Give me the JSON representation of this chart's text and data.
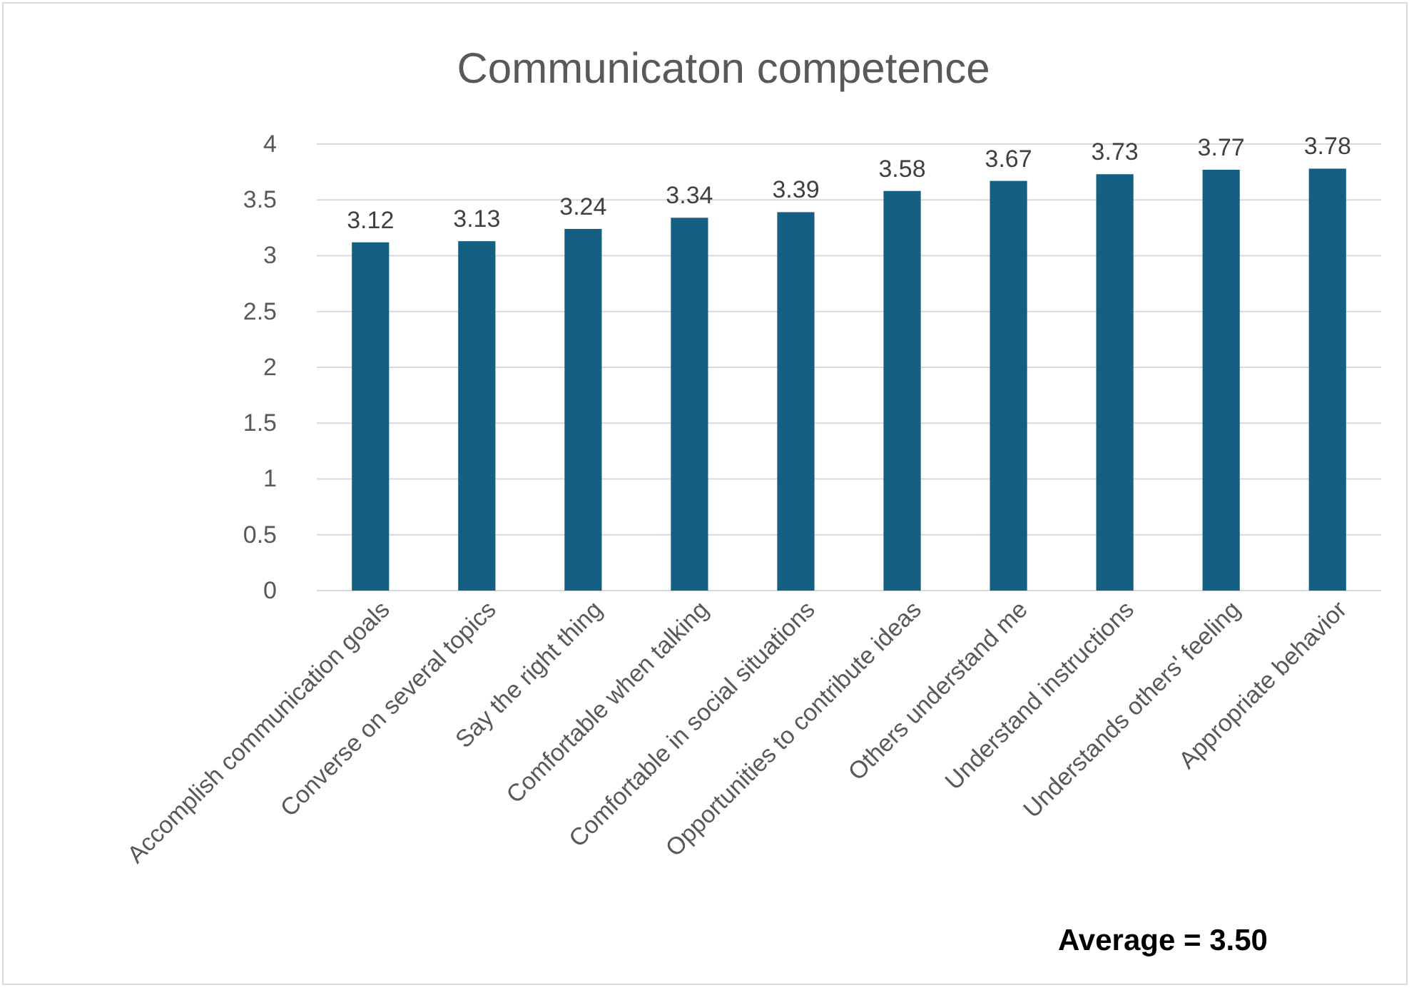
{
  "chart_data": {
    "type": "bar",
    "title": "Communicaton competence",
    "categories": [
      "Accomplish communication goals",
      "Converse on several topics",
      "Say the right thing",
      "Comfortable when talking",
      "Comfortable in social situations",
      "Opportunities to contribute ideas",
      "Others understand me",
      "Understand instructions",
      "Understands others' feeling",
      "Appropriate behavior"
    ],
    "values": [
      3.12,
      3.13,
      3.24,
      3.34,
      3.39,
      3.58,
      3.67,
      3.73,
      3.77,
      3.78
    ],
    "color": "#156082",
    "ylim": [
      0,
      4
    ],
    "yticks": [
      0,
      0.5,
      1,
      1.5,
      2,
      2.5,
      3,
      3.5,
      4
    ],
    "grid": "y",
    "data_labels": true,
    "annotations": [
      "Average = 3.50"
    ]
  }
}
